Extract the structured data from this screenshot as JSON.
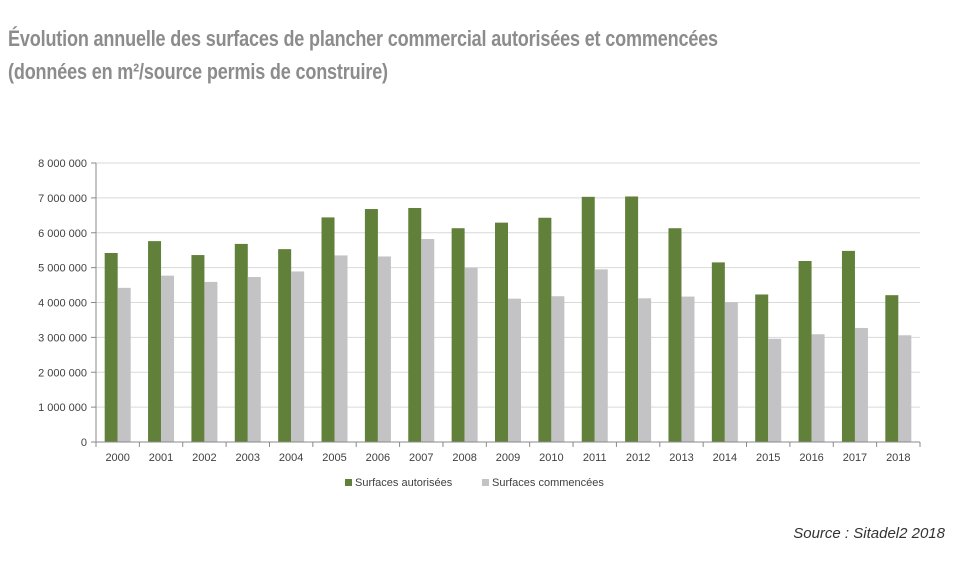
{
  "title": {
    "line1": "Évolution annuelle des surfaces de plancher commercial autorisées et commencées",
    "line2": "(données en m²/source permis de construire)"
  },
  "source": "Source : Sitadel2 2018",
  "colors": {
    "autorisees": "#61803a",
    "commencees": "#c3c3c5",
    "grid": "#d9d9d9",
    "axis": "#8a8a8a",
    "text": "#404040"
  },
  "chart_data": {
    "type": "bar",
    "title": "",
    "xlabel": "",
    "ylabel": "",
    "ylim": [
      0,
      8000000
    ],
    "yticks": [
      0,
      1000000,
      2000000,
      3000000,
      4000000,
      5000000,
      6000000,
      7000000,
      8000000
    ],
    "ytick_labels": [
      "0",
      "1 000 000",
      "2 000 000",
      "3 000 000",
      "4 000 000",
      "5 000 000",
      "6 000 000",
      "7 000 000",
      "8 000 000"
    ],
    "grid": true,
    "legend_position": "bottom",
    "categories": [
      "2000",
      "2001",
      "2002",
      "2003",
      "2004",
      "2005",
      "2006",
      "2007",
      "2008",
      "2009",
      "2010",
      "2011",
      "2012",
      "2013",
      "2014",
      "2015",
      "2016",
      "2017",
      "2018"
    ],
    "series": [
      {
        "name": "Surfaces autorisées",
        "values": [
          5420000,
          5760000,
          5360000,
          5680000,
          5530000,
          6440000,
          6680000,
          6710000,
          6130000,
          6290000,
          6430000,
          7030000,
          7040000,
          6130000,
          5150000,
          4230000,
          5190000,
          5480000,
          4210000
        ]
      },
      {
        "name": "Surfaces commencées",
        "values": [
          4420000,
          4770000,
          4590000,
          4730000,
          4890000,
          5350000,
          5320000,
          5820000,
          5000000,
          4110000,
          4180000,
          4950000,
          4120000,
          4170000,
          4010000,
          2960000,
          3090000,
          3270000,
          3060000
        ]
      }
    ]
  }
}
